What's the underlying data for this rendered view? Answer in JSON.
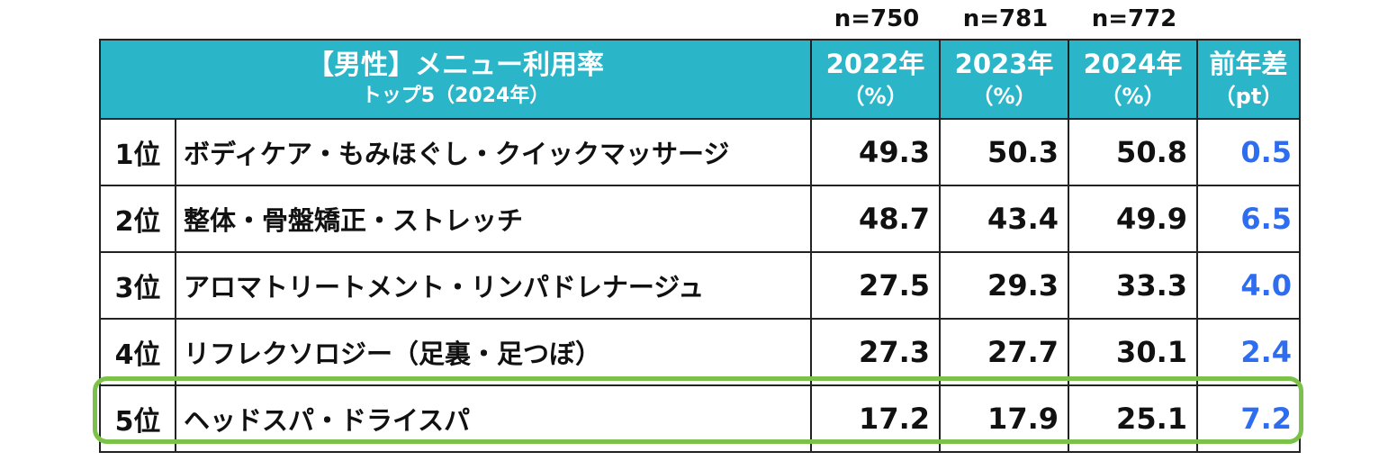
{
  "sample_sizes": [
    "n=750",
    "n=781",
    "n=772"
  ],
  "header": {
    "title": "【男性】メニュー利用率",
    "subtitle": "トップ5（2024年）",
    "columns": [
      {
        "year": "2022年",
        "unit": "（%）"
      },
      {
        "year": "2023年",
        "unit": "（%）"
      },
      {
        "year": "2024年",
        "unit": "（%）"
      },
      {
        "year": "前年差",
        "unit": "（pt）"
      }
    ]
  },
  "rows": [
    {
      "rank": "1位",
      "item": "ボディケア・もみほぐし・クイックマッサージ",
      "v2022": "49.3",
      "v2023": "50.3",
      "v2024": "50.8",
      "diff": "0.5"
    },
    {
      "rank": "2位",
      "item": "整体・骨盤矯正・ストレッチ",
      "v2022": "48.7",
      "v2023": "43.4",
      "v2024": "49.9",
      "diff": "6.5"
    },
    {
      "rank": "3位",
      "item": "アロマトリートメント・リンパドレナージュ",
      "v2022": "27.5",
      "v2023": "29.3",
      "v2024": "33.3",
      "diff": "4.0"
    },
    {
      "rank": "4位",
      "item": "リフレクソロジー（足裏・足つぼ）",
      "v2022": "27.3",
      "v2023": "27.7",
      "v2024": "30.1",
      "diff": "2.4"
    },
    {
      "rank": "5位",
      "item": "ヘッドスパ・ドライスパ",
      "v2022": "17.2",
      "v2023": "17.9",
      "v2024": "25.1",
      "diff": "7.2"
    }
  ],
  "colors": {
    "header_bg": "#2ab5c8",
    "diff_text": "#2f6df0",
    "highlight_border": "#7cc14a"
  }
}
